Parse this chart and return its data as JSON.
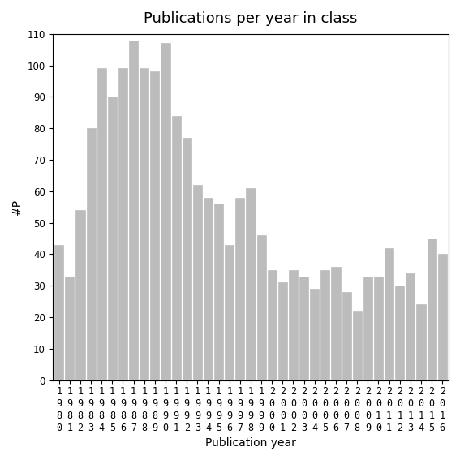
{
  "title": "Publications per year in class",
  "xlabel": "Publication year",
  "ylabel": "#P",
  "years": [
    1980,
    1981,
    1982,
    1983,
    1984,
    1985,
    1986,
    1987,
    1988,
    1989,
    1990,
    1991,
    1992,
    1993,
    1994,
    1995,
    1996,
    1997,
    1998,
    1999,
    2000,
    2001,
    2002,
    2003,
    2004,
    2005,
    2006,
    2007,
    2008,
    2009,
    2010,
    2011,
    2012,
    2013,
    2014,
    2015,
    2016
  ],
  "values": [
    43,
    33,
    54,
    80,
    99,
    90,
    99,
    108,
    99,
    98,
    107,
    84,
    77,
    62,
    58,
    56,
    43,
    58,
    61,
    46,
    35,
    31,
    35,
    33,
    29,
    35,
    36,
    28,
    22,
    33,
    33,
    42,
    30,
    34,
    24,
    45,
    40
  ],
  "bar_color": "#bcbcbc",
  "bar_edgecolor": "#bcbcbc",
  "ylim": [
    0,
    110
  ],
  "yticks": [
    0,
    10,
    20,
    30,
    40,
    50,
    60,
    70,
    80,
    90,
    100,
    110
  ],
  "bg_color": "#ffffff",
  "title_fontsize": 13,
  "label_fontsize": 10,
  "tick_fontsize": 8.5
}
